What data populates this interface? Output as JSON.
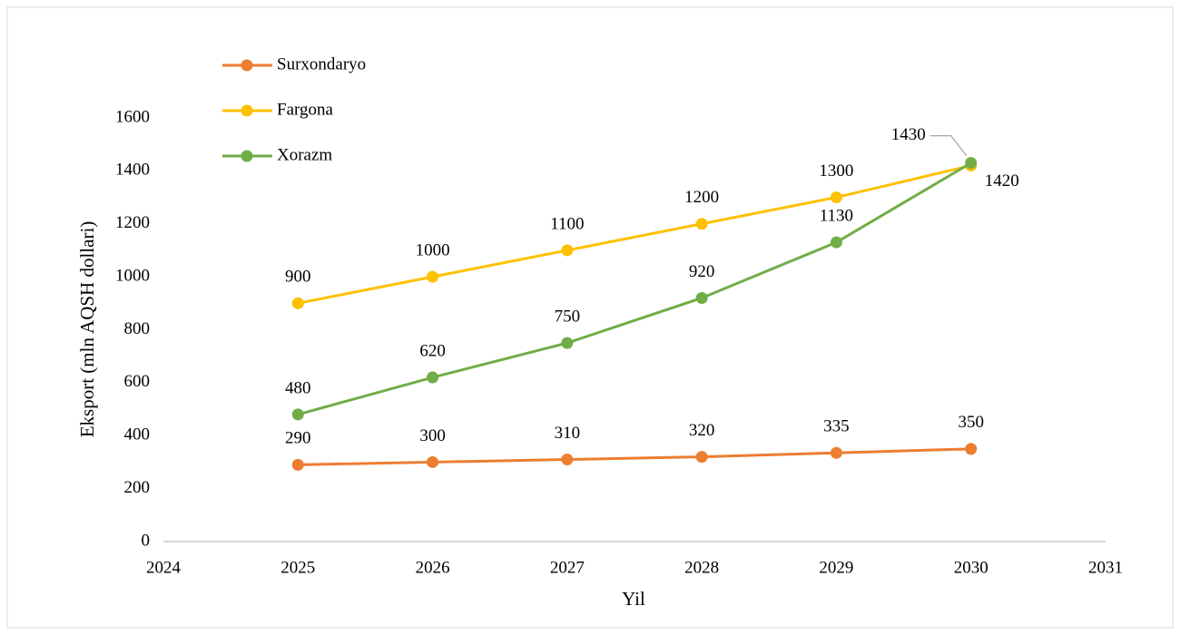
{
  "chart_data": {
    "type": "line",
    "xlabel": "Yil",
    "ylabel": "Eksport (mln AQSH dollari)",
    "x": [
      2025,
      2026,
      2027,
      2028,
      2029,
      2030
    ],
    "series": [
      {
        "name": "Surxondaryo",
        "color": "#ed7d31",
        "values": [
          290,
          300,
          310,
          320,
          335,
          350
        ]
      },
      {
        "name": "Fargona",
        "color": "#ffc000",
        "values": [
          900,
          1000,
          1100,
          1200,
          1300,
          1420
        ]
      },
      {
        "name": "Xorazm",
        "color": "#70ad47",
        "values": [
          480,
          620,
          750,
          920,
          1130,
          1430
        ]
      }
    ],
    "xlim": [
      2024,
      2031
    ],
    "xticks": [
      2024,
      2025,
      2026,
      2027,
      2028,
      2029,
      2030,
      2031
    ],
    "ylim": [
      0,
      1600
    ],
    "yticks": [
      0,
      200,
      400,
      600,
      800,
      1000,
      1200,
      1400,
      1600
    ],
    "grid": false,
    "legend": "upper left"
  }
}
